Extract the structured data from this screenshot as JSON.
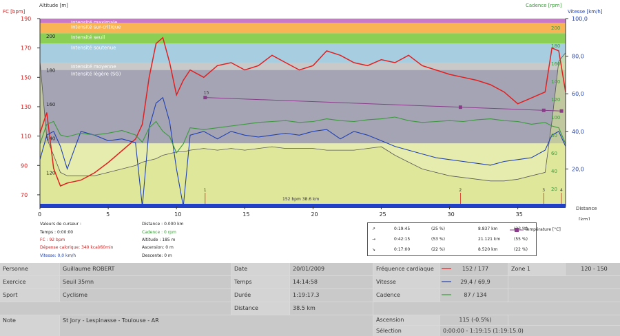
{
  "chart_data": {
    "type": "line",
    "axes": {
      "fc_label": "FC [bpm]",
      "altitude_label": "Altitude  [m]",
      "cadence_label": "Cadence [rpm]",
      "vitesse_label": "Vitesse [km/h]",
      "distance_label": "Distance",
      "distance_unit": "[km]",
      "fc_ticks": [
        "190",
        "170",
        "150",
        "130",
        "110",
        "90",
        "70"
      ],
      "altitude_ticks": [
        "200",
        "180",
        "160",
        "140",
        "120"
      ],
      "cadence_ticks": [
        "200",
        "180",
        "160",
        "140",
        "120",
        "100",
        "80",
        "60",
        "40",
        "20"
      ],
      "vitesse_ticks": [
        "100,0",
        "80,0",
        "60,0",
        "40,0",
        "20,0"
      ],
      "distance_ticks": [
        "0",
        "5",
        "10",
        "15",
        "20",
        "25",
        "30",
        "35"
      ],
      "fc_range": [
        62,
        190
      ],
      "vitesse_range": [
        0,
        100
      ],
      "distance_range": [
        0,
        38.5
      ]
    },
    "zones": [
      {
        "label": "Intensité maximale",
        "from": 187,
        "to": 190,
        "color": "#c87ac8"
      },
      {
        "label": "Intensité sur-critique",
        "from": 180,
        "to": 187,
        "color": "#f8b455"
      },
      {
        "label": "Intensité seuil",
        "from": 173,
        "to": 180,
        "color": "#8ccf55"
      },
      {
        "label": "Intensité soutenue",
        "from": 160,
        "to": 173,
        "color": "#a6cde0"
      },
      {
        "label": "Intensité moyenne",
        "from": 155,
        "to": 160,
        "color": "#c9c9c9"
      },
      {
        "label": "Intensité légère (SG)",
        "from": 105,
        "to": 155,
        "color": "#a4a4b5"
      },
      {
        "label": "",
        "from": 62,
        "to": 105,
        "color": "#e6ecae"
      }
    ],
    "distance": [
      0,
      0.5,
      1,
      1.5,
      2,
      2.5,
      3,
      4,
      5,
      6,
      7,
      7.5,
      8,
      8.5,
      9,
      9.5,
      10,
      10.5,
      11,
      12,
      13,
      14,
      15,
      16,
      17,
      18,
      19,
      20,
      21,
      22,
      23,
      24,
      25,
      26,
      27,
      28,
      29,
      30,
      31,
      32,
      33,
      34,
      35,
      36,
      37,
      37.5,
      38,
      38.5
    ],
    "series": [
      {
        "name": "FC",
        "color": "#e02020",
        "values": [
          112,
          126,
          88,
          76,
          78,
          79,
          80,
          85,
          92,
          100,
          108,
          118,
          150,
          173,
          177,
          160,
          138,
          148,
          155,
          150,
          158,
          160,
          155,
          158,
          165,
          160,
          155,
          158,
          168,
          165,
          160,
          158,
          162,
          160,
          165,
          158,
          155,
          152,
          150,
          148,
          145,
          140,
          132,
          136,
          140,
          170,
          168,
          140
        ]
      },
      {
        "name": "Vitesse",
        "color": "#2040b0",
        "values": [
          25,
          38,
          40,
          32,
          20,
          30,
          40,
          38,
          35,
          36,
          34,
          0,
          42,
          55,
          58,
          45,
          20,
          0,
          38,
          40,
          36,
          40,
          38,
          37,
          38,
          39,
          38,
          40,
          41,
          36,
          40,
          38,
          35,
          32,
          30,
          28,
          26,
          25,
          24,
          23,
          22,
          24,
          25,
          26,
          30,
          38,
          40,
          32
        ]
      },
      {
        "name": "Cadence",
        "color": "#3a9a3a",
        "values": [
          70,
          92,
          95,
          80,
          78,
          80,
          82,
          80,
          82,
          85,
          80,
          72,
          88,
          95,
          84,
          78,
          60,
          70,
          88,
          86,
          88,
          90,
          92,
          94,
          95,
          96,
          94,
          95,
          98,
          96,
          95,
          97,
          98,
          100,
          96,
          94,
          95,
          96,
          95,
          97,
          98,
          96,
          95,
          92,
          94,
          90,
          88,
          70
        ]
      },
      {
        "name": "Altitude",
        "color": "#555555",
        "values": [
          185,
          140,
          130,
          120,
          118,
          118,
          118,
          118,
          120,
          122,
          124,
          126,
          127,
          128,
          130,
          131,
          132,
          132,
          133,
          134,
          133,
          134,
          133,
          134,
          135,
          134,
          134,
          134,
          133,
          133,
          133,
          134,
          135,
          130,
          126,
          122,
          120,
          118,
          117,
          116,
          115,
          115,
          116,
          118,
          120,
          150,
          185,
          190
        ]
      }
    ],
    "markers": [
      {
        "label": "1",
        "distance": 12.1
      },
      {
        "label": "2",
        "distance": 30.8
      },
      {
        "label": "3",
        "distance": 36.9
      },
      {
        "label": "4",
        "distance": 38.2
      }
    ],
    "temperature": {
      "label": "Température [°C]",
      "start_label": "15",
      "start_distance": 12.1,
      "start_value": 14.8,
      "end_distance": 38.2,
      "end_value": 10.5
    },
    "summary_label": "152 bpm  38.6 km"
  },
  "cursor_values": {
    "title": "Valeurs de curseur :",
    "temps": "Temps : 0:00:00",
    "fc": "FC : 92 bpm",
    "depense": "Dépense calorique: 340 kcal/60min",
    "vitesse": "Vitesse: 0,0 km/h",
    "distance": "Distance : 0.000 km",
    "cadence": "Cadence : 0 rpm",
    "altitude": "Altitude : 185 m",
    "ascension": "Ascension: 0 m",
    "descente": "Descente: 0 m"
  },
  "legend_rows": [
    {
      "arrow": "↗",
      "time": "0:19:45",
      "pct": "(25 %)",
      "dist": "8.837 km",
      "dpct": "(23 %)"
    },
    {
      "arrow": "→",
      "time": "0:42:15",
      "pct": "(53 %)",
      "dist": "21.121 km",
      "dpct": "(55 %)"
    },
    {
      "arrow": "↘",
      "time": "0:17:00",
      "pct": "(22 %)",
      "dist": "8.520 km",
      "dpct": "(22 %)"
    }
  ],
  "table": {
    "personne_label": "Personne",
    "personne": "Guillaume ROBERT",
    "exercice_label": "Exercice",
    "exercice": "Seuil 35mn",
    "sport_label": "Sport",
    "sport": "Cyclisme",
    "note_label": "Note",
    "note": "St Jory - Lespinasse - Toulouse - AR",
    "date_label": "Date",
    "date": "20/01/2009",
    "temps_label": "Temps",
    "temps": "14:14:58",
    "duree_label": "Durée",
    "duree": "1:19:17.3",
    "distance_label": "Distance",
    "distance": "38.5 km",
    "fc_label": "Fréquence cardiaque",
    "fc": "152 / 177",
    "vitesse_label": "Vitesse",
    "vitesse": "29,4 / 69,9",
    "cadence_label": "Cadence",
    "cadence": "87 / 134",
    "zone_label": "Zone 1",
    "zone": "120 - 150",
    "ascension_label": "Ascension",
    "ascension": "115 (-0.5%)",
    "selection_label": "Sélection",
    "selection": "0:00:00 - 1:19:15 (1:19:15.0)"
  },
  "colors": {
    "fc": "#e02020",
    "vitesse": "#2040b0",
    "cadence": "#3a9a3a",
    "temperature": "#8a3c8a"
  }
}
